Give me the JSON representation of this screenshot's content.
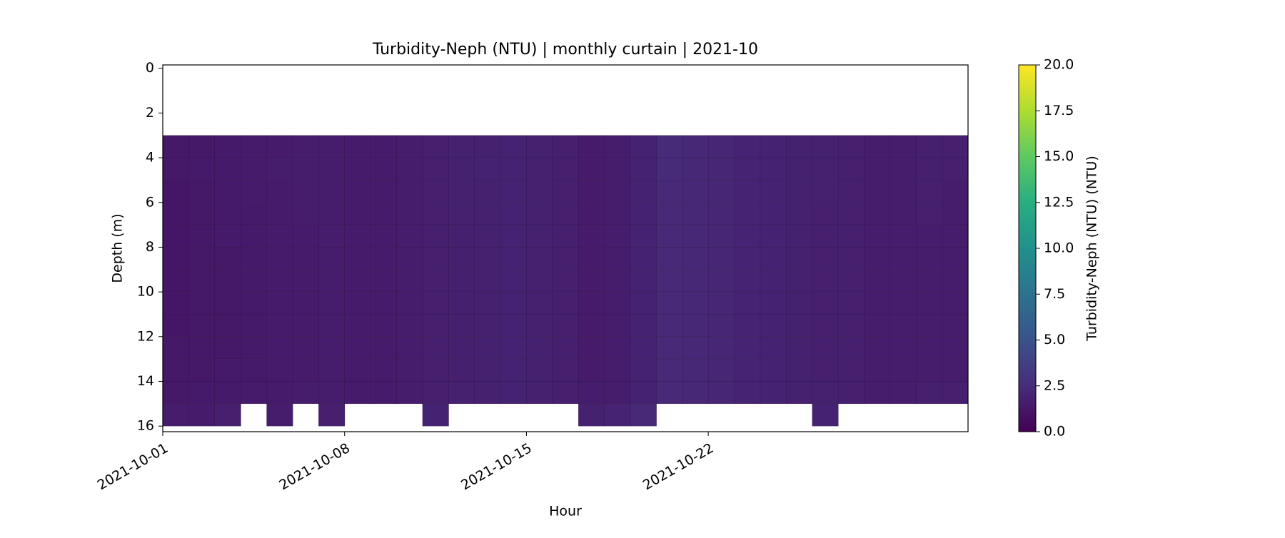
{
  "chart_data": {
    "type": "heatmap",
    "title": "Turbidity-Neph (NTU) | monthly curtain | 2021-10",
    "xlabel": "Hour",
    "ylabel": "Depth (m)",
    "colorbar_label": "Turbidity-Neph (NTU) (NTU)",
    "x": [
      "2021-10-01",
      "2021-10-02",
      "2021-10-03",
      "2021-10-04",
      "2021-10-05",
      "2021-10-06",
      "2021-10-07",
      "2021-10-08",
      "2021-10-09",
      "2021-10-10",
      "2021-10-11",
      "2021-10-12",
      "2021-10-13",
      "2021-10-14",
      "2021-10-15",
      "2021-10-16",
      "2021-10-17",
      "2021-10-18",
      "2021-10-19",
      "2021-10-20",
      "2021-10-21",
      "2021-10-22",
      "2021-10-23",
      "2021-10-24",
      "2021-10-25",
      "2021-10-26",
      "2021-10-27",
      "2021-10-28",
      "2021-10-29",
      "2021-10-30",
      "2021-10-31"
    ],
    "depth_bins": [
      3,
      4,
      5,
      6,
      7,
      8,
      9,
      10,
      11,
      12,
      13,
      14,
      15,
      16
    ],
    "values": [
      [
        1.3,
        1.3,
        1.4,
        1.5,
        1.5,
        1.6,
        1.6,
        1.5,
        1.5,
        1.6,
        1.7,
        1.8,
        1.8,
        1.9,
        1.8,
        1.7,
        1.5,
        1.6,
        1.9,
        2.4,
        2.2,
        2.1,
        2.0,
        1.9,
        1.8,
        1.8,
        1.7,
        1.6,
        1.6,
        1.7,
        1.7
      ],
      [
        1.3,
        1.4,
        1.4,
        1.5,
        1.6,
        1.6,
        1.6,
        1.5,
        1.5,
        1.6,
        1.7,
        1.8,
        1.9,
        1.9,
        1.8,
        1.7,
        1.5,
        1.6,
        1.9,
        2.4,
        2.2,
        2.1,
        2.0,
        1.9,
        1.8,
        1.8,
        1.7,
        1.6,
        1.6,
        1.7,
        1.7
      ],
      [
        1.2,
        1.3,
        1.4,
        1.5,
        1.5,
        1.6,
        1.6,
        1.5,
        1.5,
        1.6,
        1.7,
        1.8,
        1.8,
        1.9,
        1.8,
        1.7,
        1.5,
        1.6,
        1.9,
        2.3,
        2.2,
        2.1,
        2.0,
        1.9,
        1.8,
        1.8,
        1.7,
        1.6,
        1.6,
        1.7,
        1.6
      ],
      [
        1.2,
        1.3,
        1.4,
        1.4,
        1.5,
        1.6,
        1.6,
        1.5,
        1.5,
        1.6,
        1.7,
        1.8,
        1.8,
        1.9,
        1.8,
        1.7,
        1.5,
        1.6,
        1.9,
        2.3,
        2.2,
        2.1,
        2.0,
        1.9,
        1.8,
        1.7,
        1.7,
        1.6,
        1.6,
        1.7,
        1.6
      ],
      [
        1.2,
        1.3,
        1.4,
        1.4,
        1.5,
        1.5,
        1.6,
        1.5,
        1.5,
        1.6,
        1.7,
        1.7,
        1.8,
        1.9,
        1.8,
        1.7,
        1.5,
        1.6,
        1.9,
        2.3,
        2.2,
        2.1,
        2.0,
        1.9,
        1.8,
        1.7,
        1.7,
        1.6,
        1.6,
        1.6,
        1.6
      ],
      [
        1.2,
        1.3,
        1.3,
        1.4,
        1.5,
        1.5,
        1.6,
        1.5,
        1.5,
        1.6,
        1.7,
        1.7,
        1.8,
        1.9,
        1.8,
        1.7,
        1.5,
        1.6,
        1.9,
        2.3,
        2.2,
        2.1,
        2.0,
        1.9,
        1.8,
        1.7,
        1.7,
        1.6,
        1.6,
        1.6,
        1.6
      ],
      [
        1.2,
        1.3,
        1.3,
        1.4,
        1.5,
        1.5,
        1.6,
        1.5,
        1.5,
        1.6,
        1.7,
        1.7,
        1.8,
        1.9,
        1.8,
        1.7,
        1.5,
        1.6,
        1.9,
        2.3,
        2.2,
        2.1,
        2.0,
        1.9,
        1.8,
        1.7,
        1.7,
        1.6,
        1.6,
        1.6,
        1.6
      ],
      [
        1.2,
        1.3,
        1.3,
        1.4,
        1.5,
        1.5,
        1.6,
        1.5,
        1.5,
        1.6,
        1.7,
        1.7,
        1.8,
        1.9,
        1.8,
        1.7,
        1.5,
        1.6,
        1.9,
        2.3,
        2.2,
        2.1,
        2.0,
        1.9,
        1.8,
        1.7,
        1.7,
        1.6,
        1.6,
        1.6,
        1.6
      ],
      [
        1.2,
        1.3,
        1.3,
        1.4,
        1.5,
        1.5,
        1.6,
        1.5,
        1.5,
        1.6,
        1.7,
        1.7,
        1.8,
        1.9,
        1.8,
        1.7,
        1.5,
        1.6,
        1.9,
        2.3,
        2.2,
        2.1,
        2.0,
        1.9,
        1.8,
        1.7,
        1.7,
        1.6,
        1.6,
        1.6,
        1.6
      ],
      [
        1.3,
        1.3,
        1.3,
        1.4,
        1.5,
        1.5,
        1.6,
        1.5,
        1.5,
        1.6,
        1.7,
        1.7,
        1.8,
        1.9,
        1.8,
        1.7,
        1.5,
        1.6,
        1.9,
        2.3,
        2.2,
        2.1,
        2.0,
        1.9,
        1.8,
        1.7,
        1.7,
        1.6,
        1.6,
        1.6,
        1.6
      ],
      [
        1.3,
        1.3,
        1.4,
        1.4,
        1.5,
        1.5,
        1.6,
        1.5,
        1.5,
        1.6,
        1.7,
        1.7,
        1.8,
        1.9,
        1.8,
        1.7,
        1.5,
        1.6,
        1.9,
        2.3,
        2.2,
        2.1,
        2.0,
        1.9,
        1.8,
        1.7,
        1.7,
        1.6,
        1.6,
        1.6,
        1.6
      ],
      [
        1.3,
        1.4,
        1.4,
        1.5,
        1.5,
        1.6,
        1.6,
        1.5,
        1.5,
        1.6,
        1.7,
        1.8,
        1.8,
        1.9,
        1.8,
        1.7,
        1.6,
        1.6,
        1.9,
        2.3,
        2.2,
        2.1,
        2.0,
        1.9,
        1.8,
        1.8,
        1.7,
        1.6,
        1.6,
        1.7,
        1.7
      ],
      [
        1.6,
        1.5,
        1.7,
        null,
        1.6,
        null,
        1.7,
        null,
        null,
        null,
        1.9,
        null,
        null,
        null,
        null,
        null,
        1.8,
        2.0,
        2.3,
        null,
        null,
        null,
        null,
        null,
        null,
        1.9,
        null,
        null,
        null,
        null,
        null
      ]
    ],
    "xlim": [
      "2021-10-01",
      "2021-11-01"
    ],
    "xticks": [
      "2021-10-01",
      "2021-10-08",
      "2021-10-15",
      "2021-10-22"
    ],
    "ylim": [
      16.25,
      -0.15
    ],
    "yticks": [
      0,
      2,
      4,
      6,
      8,
      10,
      12,
      14,
      16
    ],
    "inverted_y": true,
    "colormap": "viridis",
    "clim": [
      0,
      20
    ],
    "cticks": [
      {
        "value": 0,
        "label": "0.0"
      },
      2.5,
      {
        "value": 5,
        "label": "5.0"
      },
      7.5,
      {
        "value": 10,
        "label": "10.0"
      },
      12.5,
      {
        "value": 15,
        "label": "15.0"
      },
      17.5,
      {
        "value": 20,
        "label": "20.0"
      }
    ]
  }
}
